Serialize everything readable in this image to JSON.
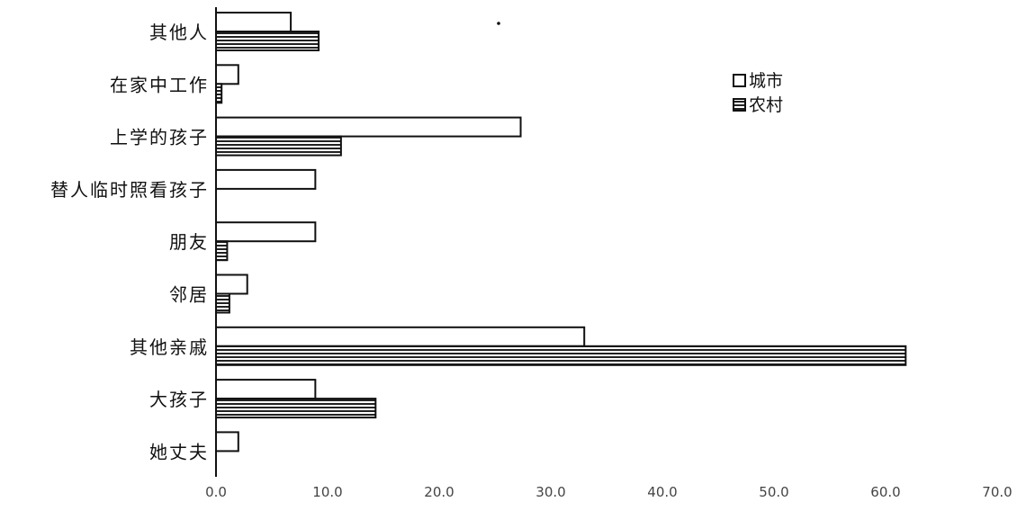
{
  "chart_data": {
    "type": "bar",
    "orientation": "horizontal",
    "categories": [
      "其他人",
      "在家中工作",
      "上学的孩子",
      "替人临时照看孩子",
      "朋友",
      "邻居",
      "其他亲戚",
      "大孩子",
      "她丈夫"
    ],
    "series": [
      {
        "name": "城市",
        "values": [
          6.7,
          2.0,
          27.3,
          8.9,
          8.9,
          2.8,
          33.0,
          8.9,
          2.0
        ],
        "fill": "white"
      },
      {
        "name": "农村",
        "values": [
          9.2,
          0.5,
          11.2,
          0.0,
          1.0,
          1.2,
          61.8,
          14.3,
          0.0
        ],
        "fill": "hatched"
      }
    ],
    "xticks": [
      "0.0",
      "10.0",
      "20.0",
      "30.0",
      "40.0",
      "50.0",
      "60.0",
      "70.0"
    ],
    "xlim": [
      0,
      70
    ],
    "legend_position": "top-right",
    "grid": false
  },
  "colors": {
    "ink": "#111111",
    "hatch": "#222222",
    "background": "#ffffff"
  }
}
